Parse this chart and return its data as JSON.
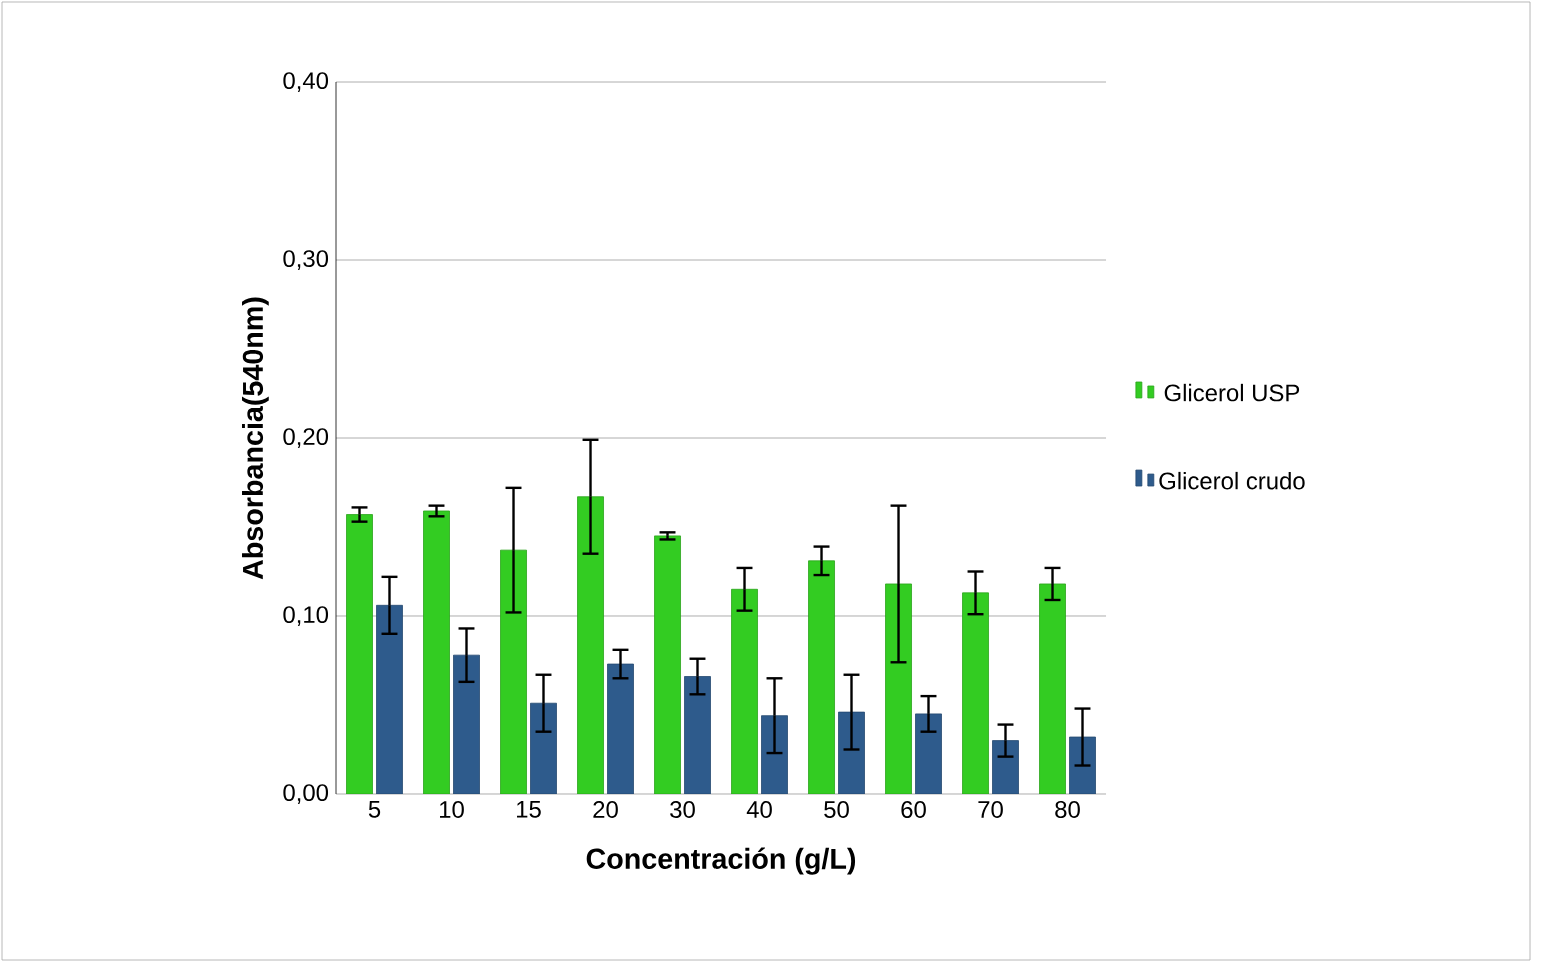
{
  "chart_data": {
    "type": "bar",
    "xlabel": "Concentración (g/L)",
    "ylabel": "Absorbancia(540nm)",
    "categories": [
      "5",
      "10",
      "15",
      "20",
      "30",
      "40",
      "50",
      "60",
      "70",
      "80"
    ],
    "series": [
      {
        "name": "Glicerol USP",
        "color": "#33cc22",
        "values": [
          0.157,
          0.159,
          0.137,
          0.167,
          0.145,
          0.115,
          0.131,
          0.118,
          0.113,
          0.118
        ],
        "errors": [
          0.004,
          0.003,
          0.035,
          0.032,
          0.002,
          0.012,
          0.008,
          0.044,
          0.012,
          0.009
        ]
      },
      {
        "name": "Glicerol crudo",
        "color": "#2e5b8c",
        "values": [
          0.106,
          0.078,
          0.051,
          0.073,
          0.066,
          0.044,
          0.046,
          0.045,
          0.03,
          0.032
        ],
        "errors": [
          0.016,
          0.015,
          0.016,
          0.008,
          0.01,
          0.021,
          0.021,
          0.01,
          0.009,
          0.016
        ]
      }
    ],
    "ylim": [
      0,
      0.4
    ],
    "yticks": [
      {
        "value": 0,
        "label": "0,00"
      },
      {
        "value": 0.1,
        "label": "0,10"
      },
      {
        "value": 0.2,
        "label": "0,20"
      },
      {
        "value": 0.3,
        "label": "0,30"
      },
      {
        "value": 0.4,
        "label": "0,40"
      }
    ],
    "grid": "y",
    "legend": "right"
  }
}
